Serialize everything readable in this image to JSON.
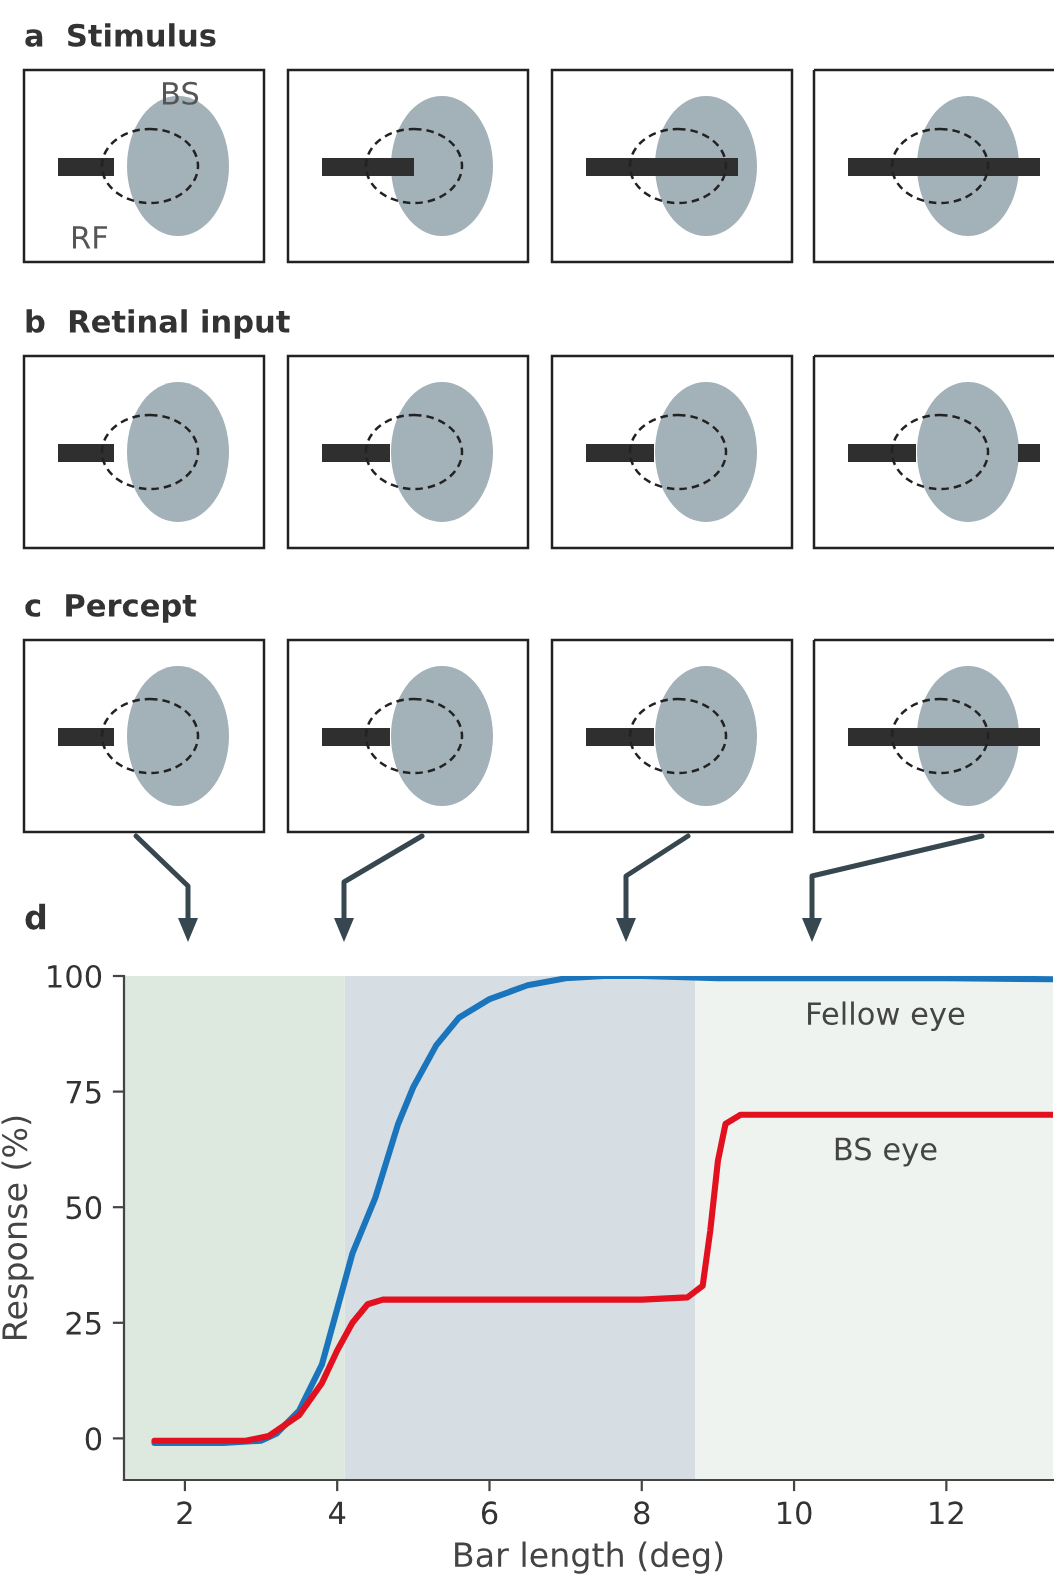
{
  "chart_data": {
    "type": "line",
    "title": "d",
    "xlabel": "Bar length (deg)",
    "ylabel": "Response (%)",
    "xlim": [
      1.2,
      13.4
    ],
    "xticks": [
      2,
      4,
      6,
      8,
      10,
      12
    ],
    "ylim": [
      -9,
      100
    ],
    "yticks": [
      0,
      25,
      50,
      75,
      100
    ],
    "grid": false,
    "legend": false,
    "marker": "none",
    "line_style": "solid",
    "bands": [
      {
        "axis": "x",
        "from": 1.2,
        "to": 4.1,
        "color": "#dde9df"
      },
      {
        "axis": "x",
        "from": 4.1,
        "to": 8.7,
        "color": "#d7dee3"
      },
      {
        "axis": "x",
        "from": 8.7,
        "to": 13.4,
        "color": "#eef3ef"
      }
    ],
    "annotations": [
      "a  Stimulus",
      "BS",
      "RF",
      "b  Retinal input",
      "c  Percept"
    ],
    "series": [
      {
        "name": "Fellow eye",
        "color": "#1b75bc",
        "x": [
          1.6,
          2.5,
          3.0,
          3.2,
          3.5,
          3.8,
          4.0,
          4.2,
          4.5,
          4.8,
          5.0,
          5.3,
          5.6,
          6.0,
          6.5,
          7.0,
          7.5,
          8.0,
          9.0,
          10.0,
          12.0,
          13.4
        ],
        "values": [
          -1,
          -1,
          -0.5,
          1,
          6,
          16,
          28,
          40,
          52,
          68,
          76,
          85,
          91,
          95,
          98,
          99.5,
          100,
          100,
          99.5,
          99.5,
          99.5,
          99.3
        ]
      },
      {
        "name": "BS eye",
        "color": "#e3101f",
        "x": [
          1.6,
          2.8,
          3.1,
          3.5,
          3.8,
          4.0,
          4.2,
          4.4,
          4.6,
          6.0,
          8.0,
          8.6,
          8.8,
          8.9,
          9.0,
          9.1,
          9.3,
          10.0,
          13.4
        ],
        "values": [
          -0.5,
          -0.5,
          0.5,
          5,
          12,
          19,
          25,
          29,
          30,
          30,
          30,
          30.5,
          33,
          45,
          60,
          68,
          70,
          70,
          70
        ]
      }
    ]
  }
}
